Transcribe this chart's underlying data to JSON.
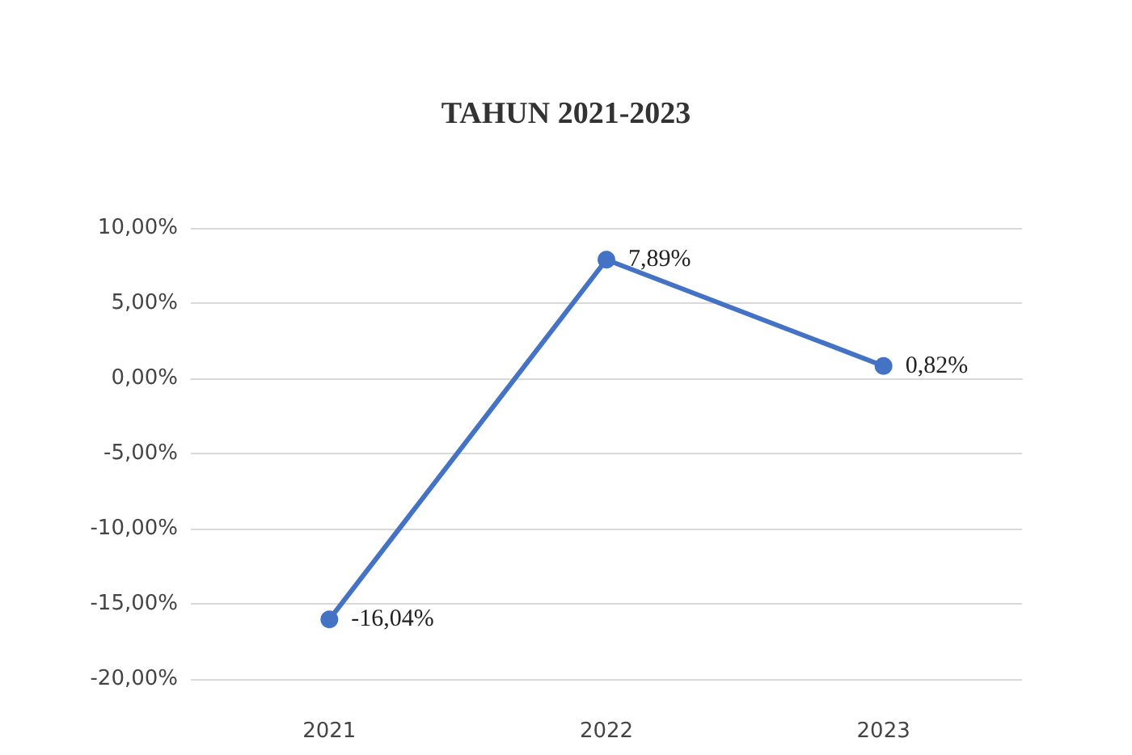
{
  "chart_data": {
    "type": "line",
    "title": "TAHUN 2021-2023",
    "categories": [
      "2021",
      "2022",
      "2023"
    ],
    "series": [
      {
        "color": "#4472c4",
        "values": [
          -16.04,
          7.89,
          0.82
        ],
        "value_labels": [
          "-16,04%",
          "7,89%",
          "0,82%"
        ]
      }
    ],
    "ylim": [
      -20,
      10
    ],
    "yticks": [
      {
        "value": -20,
        "label": "-20,00%"
      },
      {
        "value": -15,
        "label": "-15,00%"
      },
      {
        "value": -10,
        "label": "-10,00%"
      },
      {
        "value": -5,
        "label": "-5,00%"
      },
      {
        "value": 0,
        "label": "0,00%"
      },
      {
        "value": 5,
        "label": "5,00%"
      },
      {
        "value": 10,
        "label": "10,00%"
      }
    ],
    "grid": "y",
    "marker": "circle",
    "line_style": "solid"
  }
}
